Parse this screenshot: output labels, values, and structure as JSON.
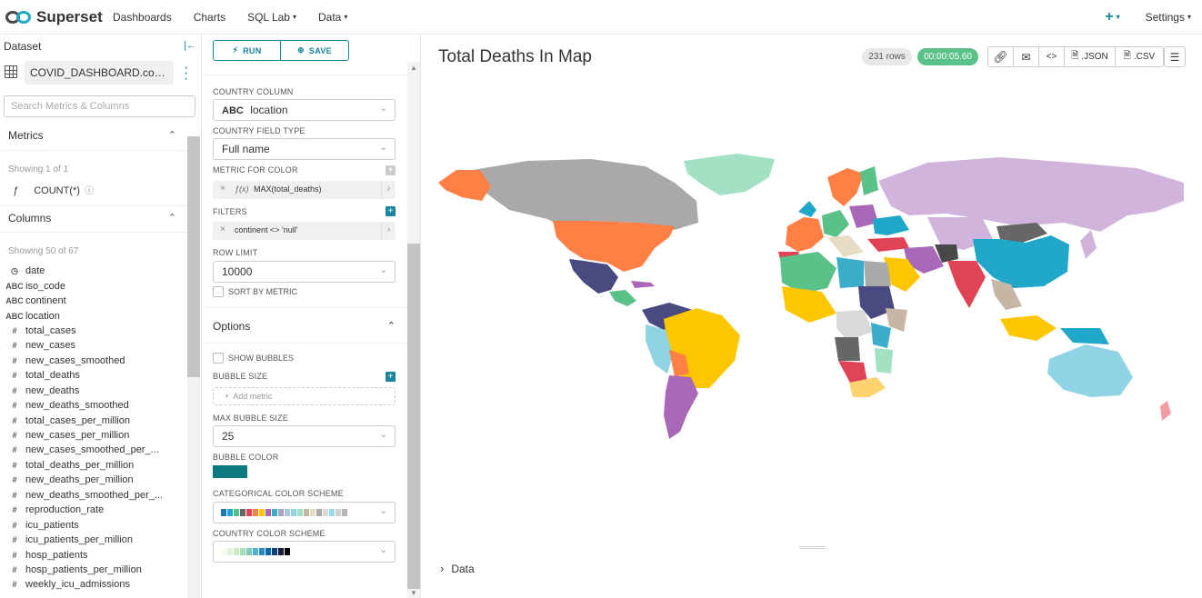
{
  "nav": {
    "brand": "Superset",
    "items": [
      {
        "label": "Dashboards",
        "caret": ""
      },
      {
        "label": "Charts",
        "caret": ""
      },
      {
        "label": "SQL Lab",
        "caret": "▾"
      },
      {
        "label": "Data",
        "caret": "▾"
      }
    ],
    "plus_label": "+",
    "settings_label": "Settings"
  },
  "dataset": {
    "header": "Dataset",
    "name": "COVID_DASHBOARD.covid_r...",
    "search_placeholder": "Search Metrics & Columns",
    "metrics_title": "Metrics",
    "metrics_showing": "Showing 1 of 1",
    "metric_fx": "ƒ",
    "metric_name": "COUNT(*)",
    "columns_title": "Columns",
    "columns_showing": "Showing 50 of 67",
    "columns": [
      {
        "type": "◷",
        "name": "date"
      },
      {
        "type": "ABC",
        "name": "iso_code"
      },
      {
        "type": "ABC",
        "name": "continent"
      },
      {
        "type": "ABC",
        "name": "location"
      },
      {
        "type": "#",
        "name": "total_cases"
      },
      {
        "type": "#",
        "name": "new_cases"
      },
      {
        "type": "#",
        "name": "new_cases_smoothed"
      },
      {
        "type": "#",
        "name": "total_deaths"
      },
      {
        "type": "#",
        "name": "new_deaths"
      },
      {
        "type": "#",
        "name": "new_deaths_smoothed"
      },
      {
        "type": "#",
        "name": "total_cases_per_million"
      },
      {
        "type": "#",
        "name": "new_cases_per_million"
      },
      {
        "type": "#",
        "name": "new_cases_smoothed_per_..."
      },
      {
        "type": "#",
        "name": "total_deaths_per_million"
      },
      {
        "type": "#",
        "name": "new_deaths_per_million"
      },
      {
        "type": "#",
        "name": "new_deaths_smoothed_per_..."
      },
      {
        "type": "#",
        "name": "reproduction_rate"
      },
      {
        "type": "#",
        "name": "icu_patients"
      },
      {
        "type": "#",
        "name": "icu_patients_per_million"
      },
      {
        "type": "#",
        "name": "hosp_patients"
      },
      {
        "type": "#",
        "name": "hosp_patients_per_million"
      },
      {
        "type": "#",
        "name": "weekly_icu_admissions"
      }
    ]
  },
  "controls": {
    "run_label": "RUN",
    "save_label": "SAVE",
    "country_column_label": "COUNTRY COLUMN",
    "country_column_type": "ABC",
    "country_column_value": "location",
    "country_field_type_label": "COUNTRY FIELD TYPE",
    "country_field_type_value": "Full name",
    "metric_for_color_label": "METRIC FOR COLOR",
    "metric_for_color_value": "MAX(total_deaths)",
    "metric_fx": "ƒ(x)",
    "filters_label": "FILTERS",
    "filter_value": "continent <> 'null'",
    "row_limit_label": "ROW LIMIT",
    "row_limit_value": "10000",
    "sort_by_metric_label": "SORT BY METRIC",
    "options_title": "Options",
    "show_bubbles_label": "SHOW BUBBLES",
    "bubble_size_label": "BUBBLE SIZE",
    "add_metric_label": "Add metric",
    "max_bubble_size_label": "MAX BUBBLE SIZE",
    "max_bubble_size_value": "25",
    "bubble_color_label": "BUBBLE COLOR",
    "bubble_color": "#0d7a80",
    "categorical_scheme_label": "CATEGORICAL COLOR SCHEME",
    "categorical_colors": [
      "#1f77b4",
      "#20a7c9",
      "#5ac189",
      "#666666",
      "#e04355",
      "#ff7f44",
      "#fcc700",
      "#a868b7",
      "#3caccb",
      "#a1a6bd",
      "#acc4de",
      "#8fd3e4",
      "#a3e1c4",
      "#c7b6a5",
      "#e8dcc5",
      "#a9a9a9",
      "#d9d9d9",
      "#96dbeb",
      "#d1d1d1",
      "#b6b6b6"
    ],
    "country_scheme_label": "COUNTRY COLOR SCHEME",
    "country_colors": [
      "#f7fcf0",
      "#e0f3db",
      "#ccebc5",
      "#a8ddb5",
      "#7bccc4",
      "#4eb3d3",
      "#2b8cbe",
      "#0868ac",
      "#084081",
      "#1a1a3e",
      "#000000"
    ]
  },
  "chart": {
    "title": "Total Deaths In Map",
    "rows_badge": "231 rows",
    "time_badge": "00:00:05.60",
    "json_label": ".JSON",
    "csv_label": ".CSV",
    "data_section_label": "Data"
  }
}
